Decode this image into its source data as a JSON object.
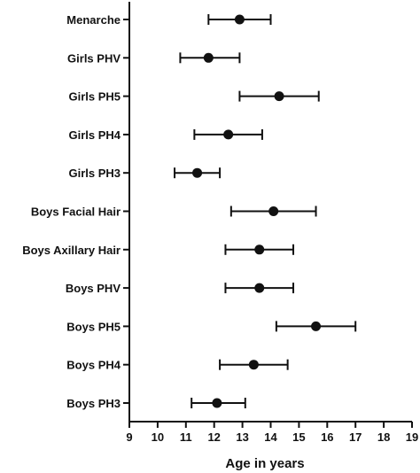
{
  "chart_data": {
    "type": "scatter",
    "style": "dot-with-horizontal-error-bars",
    "title": "",
    "xlabel": "Age in years",
    "ylabel": "",
    "xlim": [
      9,
      19
    ],
    "x_ticks": [
      9,
      10,
      11,
      12,
      13,
      14,
      15,
      16,
      17,
      18,
      19
    ],
    "grid": false,
    "categories": [
      "Menarche",
      "Girls PHV",
      "Girls PH5",
      "Girls PH4",
      "Girls PH3",
      "Boys Facial Hair",
      "Boys Axillary Hair",
      "Boys PHV",
      "Boys PH5",
      "Boys PH4",
      "Boys PH3"
    ],
    "series": [
      {
        "values": [
          12.9,
          11.8,
          14.3,
          12.5,
          11.4,
          14.1,
          13.6,
          13.6,
          15.6,
          13.4,
          12.1
        ],
        "lower": [
          11.8,
          10.8,
          12.9,
          11.3,
          10.6,
          12.6,
          12.4,
          12.4,
          14.2,
          12.2,
          11.2
        ],
        "upper": [
          14.0,
          12.9,
          15.7,
          13.7,
          12.2,
          15.6,
          14.8,
          14.8,
          17.0,
          14.6,
          13.1
        ]
      }
    ],
    "colors": {
      "marks": "#111111",
      "background": "#ffffff"
    }
  }
}
